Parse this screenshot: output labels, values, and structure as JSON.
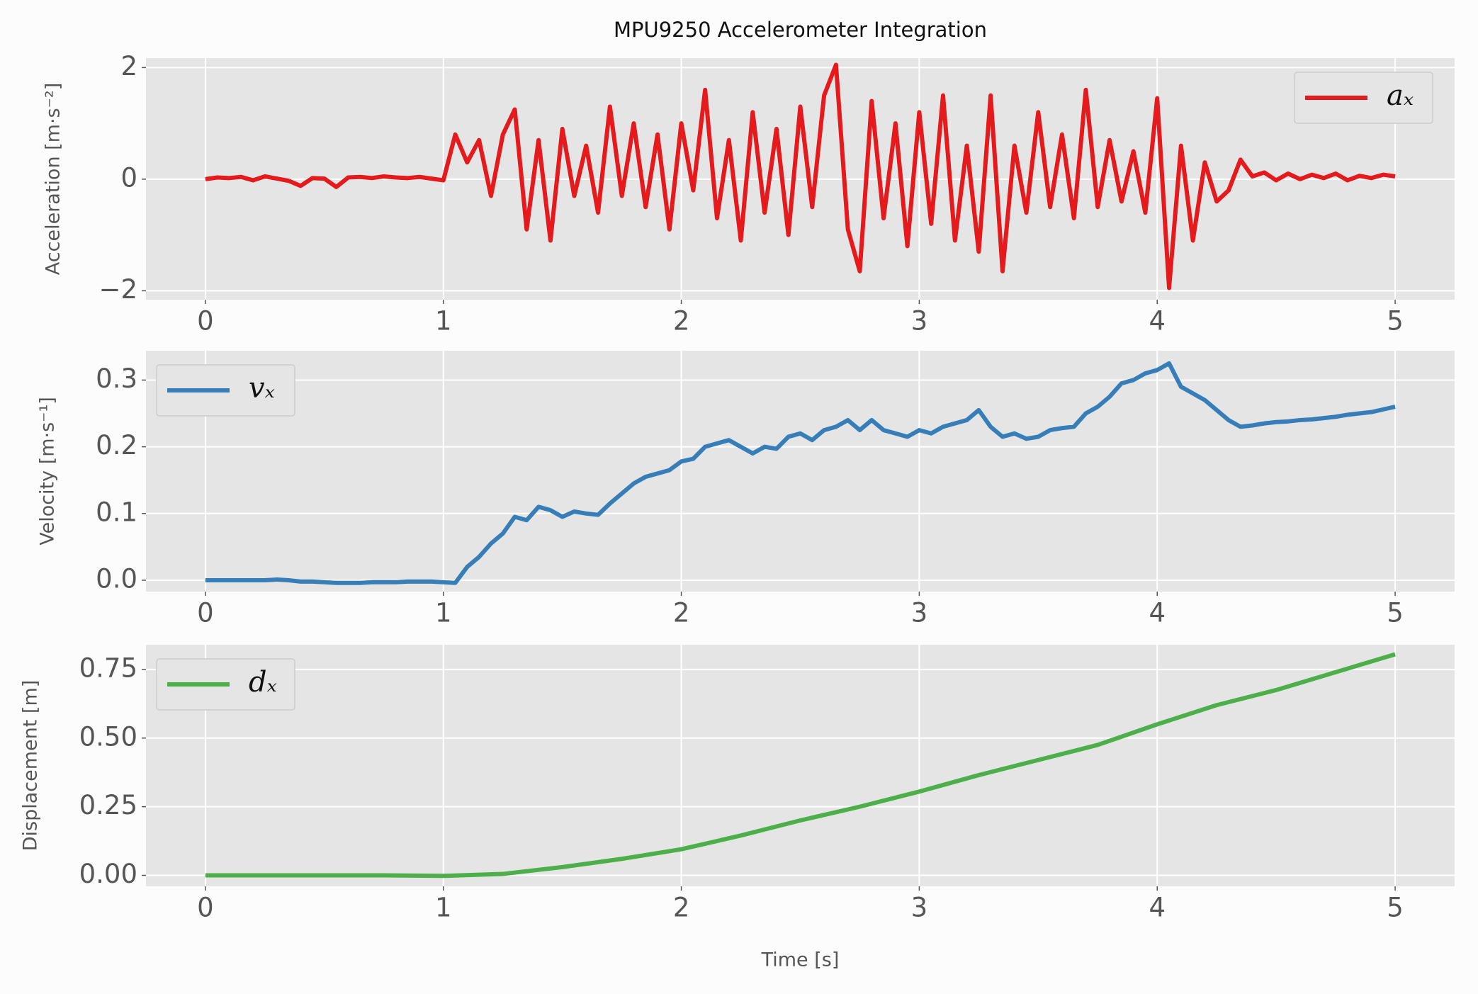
{
  "chart_data": [
    {
      "type": "line",
      "title": "MPU9250 Accelerometer Integration",
      "ylabel": "Acceleration [m·s⁻²]",
      "x": [
        0,
        0.05,
        0.1,
        0.15,
        0.2,
        0.25,
        0.3,
        0.35,
        0.4,
        0.45,
        0.5,
        0.55,
        0.6,
        0.65,
        0.7,
        0.75,
        0.8,
        0.85,
        0.9,
        0.95,
        1,
        1.05,
        1.1,
        1.15,
        1.2,
        1.25,
        1.3,
        1.35,
        1.4,
        1.45,
        1.5,
        1.55,
        1.6,
        1.65,
        1.7,
        1.75,
        1.8,
        1.85,
        1.9,
        1.95,
        2,
        2.05,
        2.1,
        2.15,
        2.2,
        2.25,
        2.3,
        2.35,
        2.4,
        2.45,
        2.5,
        2.55,
        2.6,
        2.65,
        2.7,
        2.75,
        2.8,
        2.85,
        2.9,
        2.95,
        3,
        3.05,
        3.1,
        3.15,
        3.2,
        3.25,
        3.3,
        3.35,
        3.4,
        3.45,
        3.5,
        3.55,
        3.6,
        3.65,
        3.7,
        3.75,
        3.8,
        3.85,
        3.9,
        3.95,
        4,
        4.05,
        4.1,
        4.15,
        4.2,
        4.25,
        4.3,
        4.35,
        4.4,
        4.45,
        4.5,
        4.55,
        4.6,
        4.65,
        4.7,
        4.75,
        4.8,
        4.85,
        4.9,
        4.95,
        5
      ],
      "series": [
        {
          "name": "aₓ",
          "color": "#e41a1c",
          "values": [
            0,
            0.03,
            0.02,
            0.04,
            -0.02,
            0.05,
            0.01,
            -0.03,
            -0.12,
            0.02,
            0.01,
            -0.14,
            0.03,
            0.04,
            0.02,
            0.05,
            0.03,
            0.02,
            0.04,
            0.01,
            -0.02,
            0.8,
            0.3,
            0.7,
            -0.3,
            0.8,
            1.25,
            -0.9,
            0.7,
            -1.1,
            0.9,
            -0.3,
            0.6,
            -0.6,
            1.3,
            -0.3,
            1.0,
            -0.5,
            0.8,
            -0.9,
            1.0,
            -0.2,
            1.6,
            -0.7,
            0.7,
            -1.1,
            1.2,
            -0.6,
            0.9,
            -1.0,
            1.3,
            -0.5,
            1.5,
            2.05,
            -0.9,
            -1.65,
            1.4,
            -0.7,
            1.0,
            -1.2,
            1.2,
            -0.8,
            1.5,
            -1.1,
            0.6,
            -1.3,
            1.5,
            -1.65,
            0.6,
            -0.6,
            1.2,
            -0.5,
            0.8,
            -0.7,
            1.6,
            -0.5,
            0.7,
            -0.4,
            0.5,
            -0.6,
            1.45,
            -1.95,
            0.6,
            -1.1,
            0.3,
            -0.4,
            -0.2,
            0.35,
            0.05,
            0.12,
            -0.02,
            0.1,
            0.0,
            0.08,
            0.02,
            0.1,
            -0.02,
            0.06,
            0.02,
            0.08,
            0.05
          ]
        }
      ],
      "xlim": [
        -0.25,
        5.25
      ],
      "xticks": [
        0,
        1,
        2,
        3,
        4,
        5
      ],
      "ylim": [
        -2.16,
        2.17
      ],
      "yticks": [
        {
          "value": -2,
          "label": "−2"
        },
        0,
        2
      ],
      "grid": true,
      "legend": "upper right"
    },
    {
      "type": "line",
      "ylabel": "Velocity [m·s⁻¹]",
      "x": [
        0,
        0.05,
        0.1,
        0.15,
        0.2,
        0.25,
        0.3,
        0.35,
        0.4,
        0.45,
        0.5,
        0.55,
        0.6,
        0.65,
        0.7,
        0.75,
        0.8,
        0.85,
        0.9,
        0.95,
        1,
        1.05,
        1.1,
        1.15,
        1.2,
        1.25,
        1.3,
        1.35,
        1.4,
        1.45,
        1.5,
        1.55,
        1.6,
        1.65,
        1.7,
        1.75,
        1.8,
        1.85,
        1.9,
        1.95,
        2,
        2.05,
        2.1,
        2.15,
        2.2,
        2.25,
        2.3,
        2.35,
        2.4,
        2.45,
        2.5,
        2.55,
        2.6,
        2.65,
        2.7,
        2.75,
        2.8,
        2.85,
        2.9,
        2.95,
        3,
        3.05,
        3.1,
        3.15,
        3.2,
        3.25,
        3.3,
        3.35,
        3.4,
        3.45,
        3.5,
        3.55,
        3.6,
        3.65,
        3.7,
        3.75,
        3.8,
        3.85,
        3.9,
        3.95,
        4,
        4.05,
        4.1,
        4.15,
        4.2,
        4.25,
        4.3,
        4.35,
        4.4,
        4.45,
        4.5,
        4.55,
        4.6,
        4.65,
        4.7,
        4.75,
        4.8,
        4.85,
        4.9,
        4.95,
        5
      ],
      "series": [
        {
          "name": "vₓ",
          "color": "#377eb8",
          "values": [
            0,
            0,
            0,
            0,
            0,
            0,
            0.001,
            0,
            -0.002,
            -0.002,
            -0.003,
            -0.004,
            -0.004,
            -0.004,
            -0.003,
            -0.003,
            -0.003,
            -0.002,
            -0.002,
            -0.002,
            -0.003,
            -0.004,
            0.02,
            0.035,
            0.055,
            0.07,
            0.095,
            0.09,
            0.11,
            0.105,
            0.095,
            0.103,
            0.1,
            0.098,
            0.115,
            0.13,
            0.145,
            0.155,
            0.16,
            0.165,
            0.178,
            0.182,
            0.2,
            0.205,
            0.21,
            0.2,
            0.19,
            0.2,
            0.197,
            0.215,
            0.22,
            0.21,
            0.225,
            0.23,
            0.24,
            0.225,
            0.24,
            0.225,
            0.22,
            0.215,
            0.225,
            0.22,
            0.23,
            0.235,
            0.24,
            0.255,
            0.23,
            0.215,
            0.22,
            0.212,
            0.215,
            0.225,
            0.228,
            0.23,
            0.25,
            0.26,
            0.275,
            0.295,
            0.3,
            0.31,
            0.315,
            0.325,
            0.29,
            0.28,
            0.27,
            0.255,
            0.24,
            0.23,
            0.232,
            0.235,
            0.237,
            0.238,
            0.24,
            0.241,
            0.243,
            0.245,
            0.248,
            0.25,
            0.252,
            0.256,
            0.26
          ]
        }
      ],
      "xlim": [
        -0.25,
        5.25
      ],
      "xticks": [
        0,
        1,
        2,
        3,
        4,
        5
      ],
      "ylim": [
        -0.017,
        0.344
      ],
      "yticks": [
        {
          "value": 0,
          "label": "0.0"
        },
        0.1,
        0.2,
        0.3
      ],
      "grid": true,
      "legend": "upper left"
    },
    {
      "type": "line",
      "ylabel": "Displacement [m]",
      "xlabel": "Time [s]",
      "x": [
        0,
        0.25,
        0.5,
        0.75,
        1,
        1.25,
        1.5,
        1.75,
        2,
        2.25,
        2.5,
        2.75,
        3,
        3.25,
        3.5,
        3.75,
        4,
        4.25,
        4.5,
        4.75,
        5
      ],
      "series": [
        {
          "name": "dₓ",
          "color": "#4daf4a",
          "values": [
            0,
            0,
            0,
            0,
            -0.002,
            0.005,
            0.03,
            0.06,
            0.095,
            0.145,
            0.2,
            0.25,
            0.305,
            0.365,
            0.42,
            0.475,
            0.55,
            0.62,
            0.675,
            0.74,
            0.805
          ]
        }
      ],
      "xlim": [
        -0.25,
        5.25
      ],
      "xticks": [
        0,
        1,
        2,
        3,
        4,
        5
      ],
      "ylim": [
        -0.04,
        0.84
      ],
      "yticks": [
        {
          "value": 0,
          "label": "0.00"
        },
        0.25,
        {
          "value": 0.5,
          "label": "0.50"
        },
        0.75
      ],
      "grid": true,
      "legend": "upper left"
    }
  ]
}
